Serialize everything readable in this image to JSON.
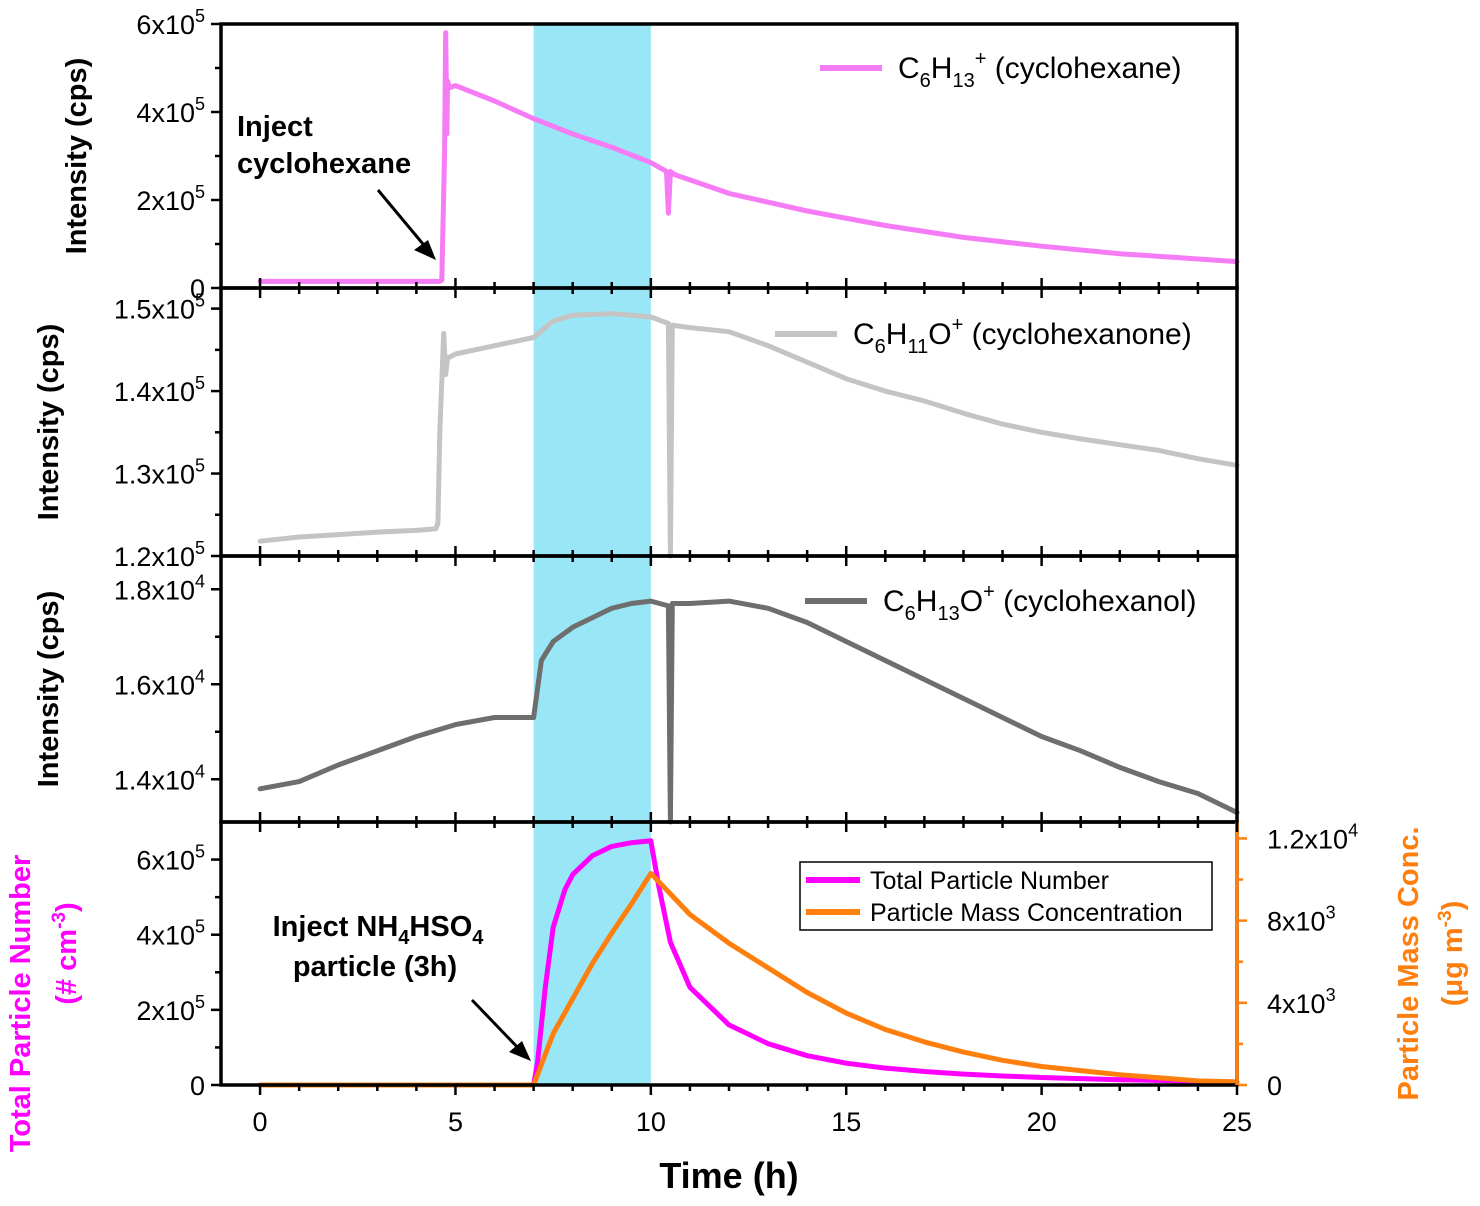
{
  "chart_data": [
    {
      "type": "line",
      "panel": "top",
      "ylabel": "Intensity (cps)",
      "ylim": [
        0,
        600000
      ],
      "yticks": [
        0,
        200000,
        400000,
        600000
      ],
      "ytick_labels": [
        {
          "base": "0",
          "exp": ""
        },
        {
          "base": "2x10",
          "exp": "5"
        },
        {
          "base": "4x10",
          "exp": "5"
        },
        {
          "base": "6x10",
          "exp": "5"
        }
      ],
      "series": [
        {
          "name": "C6H13+ (cyclohexane)",
          "legend": {
            "main": "C",
            "s1": "6",
            "mid": "H",
            "s2": "13",
            "sup": "+",
            "tail": " (cyclohexane)"
          },
          "color": "#f57cf5",
          "x": [
            0,
            4.6,
            4.65,
            4.72,
            4.75,
            4.78,
            4.8,
            4.85,
            5,
            6,
            7,
            8,
            9,
            10,
            10.4,
            10.45,
            10.5,
            10.6,
            12,
            14,
            16,
            18,
            20,
            22,
            25
          ],
          "y": [
            15000,
            15000,
            18000,
            300000,
            580000,
            350000,
            470000,
            455000,
            460000,
            425000,
            385000,
            350000,
            320000,
            285000,
            265000,
            170000,
            265000,
            258000,
            215000,
            175000,
            142000,
            115000,
            95000,
            78000,
            60000
          ]
        }
      ],
      "annotations": [
        {
          "lines": [
            "Inject",
            "cyclohexane"
          ],
          "x": 4.75,
          "y": 15000
        }
      ]
    },
    {
      "type": "line",
      "panel": "second",
      "ylabel": "Intensity (cps)",
      "ylim": [
        120000,
        152500
      ],
      "yticks": [
        120000,
        130000,
        140000,
        150000
      ],
      "ytick_labels": [
        {
          "base": "1.2x10",
          "exp": "5"
        },
        {
          "base": "1.3x10",
          "exp": "5"
        },
        {
          "base": "1.4x10",
          "exp": "5"
        },
        {
          "base": "1.5x10",
          "exp": "5"
        }
      ],
      "series": [
        {
          "name": "C6H11O+ (cyclohexanone)",
          "legend": {
            "main": "C",
            "s1": "6",
            "mid": "H",
            "s2": "11",
            "sup": "",
            "tail": "O",
            "sup2": "+",
            "tail2": " (cyclohexanone)"
          },
          "color": "#c4c4c4",
          "x": [
            0,
            1,
            2,
            3,
            4,
            4.5,
            4.55,
            4.6,
            4.7,
            4.75,
            4.8,
            5,
            6,
            7,
            7.5,
            8,
            9,
            10,
            10.45,
            10.5,
            10.55,
            11,
            12,
            13,
            14,
            15,
            16,
            17,
            18,
            19,
            20,
            21,
            22,
            23,
            24,
            25
          ],
          "y": [
            121800,
            122300,
            122600,
            122900,
            123100,
            123300,
            124000,
            135000,
            147000,
            142000,
            144000,
            144500,
            145500,
            146500,
            148500,
            149200,
            149400,
            149000,
            148200,
            120000,
            148000,
            147700,
            147200,
            145500,
            143500,
            141500,
            140000,
            138800,
            137300,
            136000,
            135000,
            134200,
            133500,
            132800,
            131800,
            131000
          ]
        }
      ]
    },
    {
      "type": "line",
      "panel": "third",
      "ylabel": "Intensity (cps)",
      "ylim": [
        13100,
        18700
      ],
      "yticks": [
        14000,
        16000,
        18000
      ],
      "ytick_labels": [
        {
          "base": "1.4x10",
          "exp": "4"
        },
        {
          "base": "1.6x10",
          "exp": "4"
        },
        {
          "base": "1.8x10",
          "exp": "4"
        }
      ],
      "series": [
        {
          "name": "C6H13O+ (cyclohexanol)",
          "legend": {
            "main": "C",
            "s1": "6",
            "mid": "H",
            "s2": "13",
            "sup": "",
            "tail": "O",
            "sup2": "+",
            "tail2": " (cyclohexanol)"
          },
          "color": "#6e6e6e",
          "x": [
            0,
            1,
            2,
            3,
            4,
            5,
            6,
            6.9,
            7,
            7.2,
            7.5,
            8,
            8.5,
            9,
            9.5,
            10,
            10.45,
            10.5,
            10.55,
            11,
            12,
            13,
            14,
            15,
            16,
            17,
            18,
            19,
            20,
            21,
            22,
            23,
            24,
            25
          ],
          "y": [
            13800,
            13950,
            14300,
            14600,
            14900,
            15150,
            15300,
            15300,
            15300,
            16500,
            16900,
            17200,
            17400,
            17600,
            17700,
            17750,
            17650,
            13100,
            17700,
            17700,
            17750,
            17600,
            17300,
            16900,
            16500,
            16100,
            15700,
            15300,
            14900,
            14600,
            14250,
            13950,
            13700,
            13300
          ]
        }
      ]
    },
    {
      "type": "line",
      "panel": "bottom",
      "xlabel": "Time (h)",
      "xlim": [
        -1,
        25
      ],
      "xticks": [
        0,
        5,
        10,
        15,
        20,
        25
      ],
      "ylabel_left": {
        "lines": [
          "Total Particle Number",
          "(# cm"
        ],
        "exp": "-3",
        "close": ")"
      },
      "ylim_left": [
        0,
        700000
      ],
      "yticks_left": [
        0,
        200000,
        400000,
        600000
      ],
      "ytick_labels_left": [
        {
          "base": "0",
          "exp": ""
        },
        {
          "base": "2x10",
          "exp": "5"
        },
        {
          "base": "4x10",
          "exp": "5"
        },
        {
          "base": "6x10",
          "exp": "5"
        }
      ],
      "ylabel_right": {
        "lines": [
          "Particle Mass Conc.",
          "(μg m"
        ],
        "exp": "-3",
        "close": ")"
      },
      "ylim_right": [
        0,
        12800
      ],
      "yticks_right": [
        0,
        4000,
        8000,
        12000
      ],
      "ytick_labels_right": [
        {
          "base": "0",
          "exp": ""
        },
        {
          "base": "4x10",
          "exp": "3"
        },
        {
          "base": "8x10",
          "exp": "3"
        },
        {
          "base": "1.2x10",
          "exp": "4"
        }
      ],
      "series": [
        {
          "name": "Total Particle Number",
          "axis": "left",
          "color": "#ff00ff",
          "x": [
            0,
            6.9,
            7,
            7.1,
            7.3,
            7.5,
            7.8,
            8,
            8.5,
            9,
            9.5,
            10,
            10.2,
            10.5,
            11,
            12,
            13,
            14,
            15,
            16,
            17,
            18,
            19,
            20,
            22,
            25
          ],
          "y": [
            0,
            0,
            0,
            60000,
            260000,
            420000,
            520000,
            560000,
            610000,
            635000,
            645000,
            650000,
            530000,
            380000,
            260000,
            160000,
            110000,
            78000,
            58000,
            45000,
            36000,
            29000,
            24000,
            20000,
            14000,
            8000
          ]
        },
        {
          "name": "Particle Mass Concentration",
          "axis": "right",
          "color": "#ff7f0e",
          "x": [
            0,
            6.9,
            7,
            7.5,
            8,
            8.5,
            9,
            9.5,
            10,
            10.5,
            11,
            12,
            13,
            14,
            15,
            16,
            17,
            18,
            19,
            20,
            21,
            22,
            23,
            24,
            25
          ],
          "y": [
            0,
            0,
            0,
            2500,
            4200,
            5900,
            7400,
            8800,
            10300,
            9300,
            8300,
            6900,
            5700,
            4500,
            3500,
            2700,
            2100,
            1600,
            1200,
            900,
            700,
            500,
            350,
            200,
            150
          ]
        }
      ],
      "annotations": [
        {
          "lines": [
            "Inject NH",
            "particle (3h)"
          ],
          "formula": {
            "a": "Inject NH",
            "s1": "4",
            "b": "HSO",
            "s2": "4"
          },
          "x": 7,
          "y": 0
        }
      ]
    }
  ],
  "shaded_region": {
    "x_start": 7,
    "x_end": 10,
    "color": "#87e3f5"
  }
}
